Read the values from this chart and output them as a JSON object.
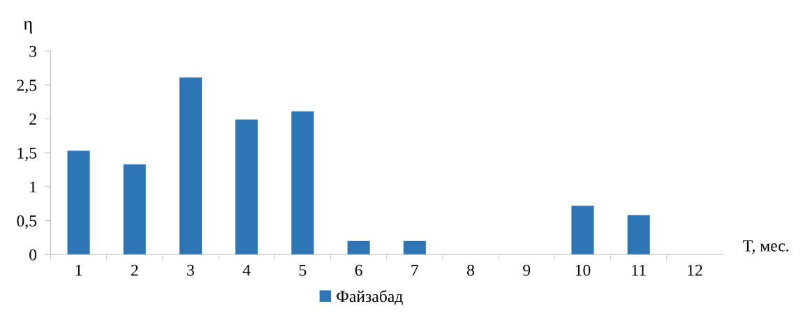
{
  "chart_data": {
    "type": "bar",
    "ylabel": "η",
    "xlabel": "T, мес.",
    "categories": [
      "1",
      "2",
      "3",
      "4",
      "5",
      "6",
      "7",
      "8",
      "9",
      "10",
      "11",
      "12"
    ],
    "series": [
      {
        "name": "Файзабад",
        "color": "#2e75b6",
        "values": [
          1.53,
          1.33,
          2.61,
          1.99,
          2.11,
          0.2,
          0.2,
          0,
          0,
          0.72,
          0.58,
          0
        ]
      }
    ],
    "ylim": [
      0,
      3
    ],
    "yticks": [
      {
        "value": 0,
        "label": "0"
      },
      {
        "value": 0.5,
        "label": "0,5"
      },
      {
        "value": 1,
        "label": "1"
      },
      {
        "value": 1.5,
        "label": "1,5"
      },
      {
        "value": 2,
        "label": "2"
      },
      {
        "value": 2.5,
        "label": "2,5"
      },
      {
        "value": 3,
        "label": "3"
      }
    ],
    "grid": false,
    "legend": "bottom"
  }
}
